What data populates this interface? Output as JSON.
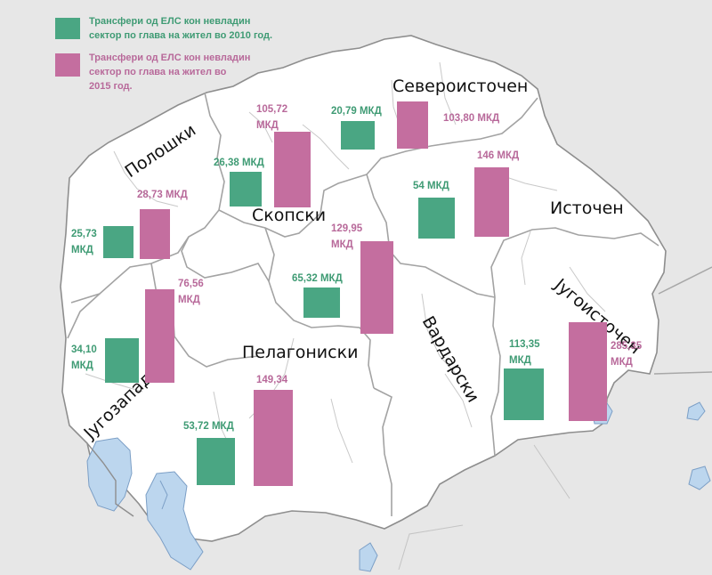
{
  "colors": {
    "y2010": "#4aa683",
    "y2015": "#c46e9f",
    "land": "#ffffff",
    "border": "#9a9a9a",
    "water": "#bcd6ee",
    "outside": "#e7e7e7"
  },
  "legend": {
    "y2010": [
      "Трансфери од ЕЛС кон невладин",
      "сектор по глава на жител во 2010  год."
    ],
    "y2015": [
      "Трансфери од ЕЛС кон невладин",
      "сектор по глава на жител во",
      "2015 год."
    ]
  },
  "regions": {
    "severoistochen": {
      "name": "Североисточен",
      "v2010": "20,79 МКД",
      "v2015": "103,80 МКД",
      "n2010": 20.79,
      "n2015": 103.8
    },
    "poloshki": {
      "name": "Полошки",
      "v2010": [
        "25,73",
        "МКД"
      ],
      "v2015": "28,73 МКД",
      "n2010": 25.73,
      "n2015": 28.73
    },
    "skopski": {
      "name": "Скопски",
      "v2010": "26,38 МКД",
      "v2015": [
        "105,72",
        "МКД"
      ],
      "n2010": 26.38,
      "n2015": 105.72
    },
    "istochen": {
      "name": "Источен",
      "v2010": "54 МКД",
      "v2015": "146 МКД",
      "n2010": 54,
      "n2015": 146
    },
    "pelagoniski": {
      "name": "Пелагониски",
      "v2010": "53,72 МКД",
      "v2015": "149,34",
      "n2010": 53.72,
      "n2015": 149.34
    },
    "vardarski": {
      "name": "Вардарски",
      "v2010": "65,32 МКД",
      "v2015": [
        "129,95",
        "МКД"
      ],
      "n2010": 65.32,
      "n2015": 129.95
    },
    "jugozapaden": {
      "name": "Југозападен",
      "v2010": [
        "34,10",
        "МКД"
      ],
      "v2015": [
        "76,56",
        "МКД"
      ],
      "n2010": 34.1,
      "n2015": 76.56
    },
    "jugoistochen": {
      "name": "Југоисточен",
      "v2010": [
        "113,35",
        "МКД"
      ],
      "v2015": [
        "285,35",
        "МКД"
      ],
      "n2010": 113.35,
      "n2015": 285.35
    }
  }
}
